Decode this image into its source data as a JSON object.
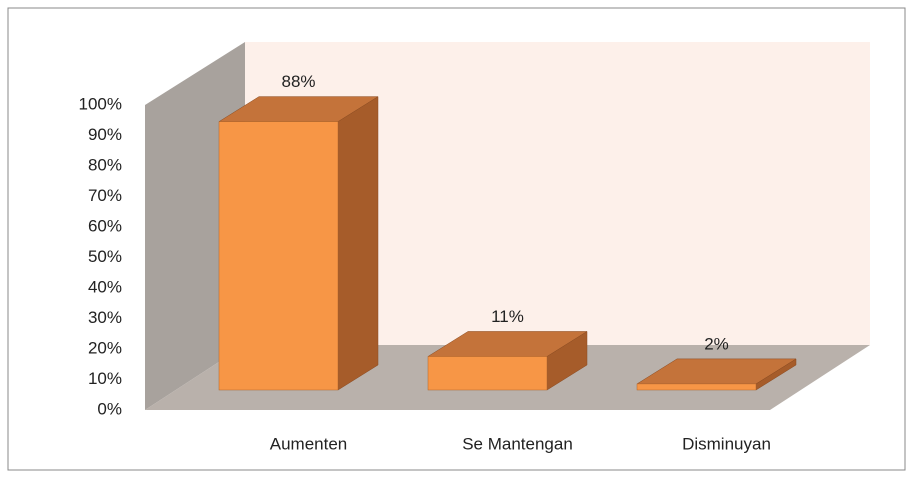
{
  "chart_data": {
    "type": "bar3d",
    "categories": [
      "Aumenten",
      "Se Mantengan",
      "Disminuyan"
    ],
    "values": [
      88,
      11,
      2
    ],
    "value_labels": [
      "88%",
      "11%",
      "2%"
    ],
    "color": "#f79646",
    "ylim": [
      0,
      100
    ],
    "yticks": [
      {
        "value": 0,
        "label": "0%"
      },
      {
        "value": 10,
        "label": "10%"
      },
      {
        "value": 20,
        "label": "20%"
      },
      {
        "value": 30,
        "label": "30%"
      },
      {
        "value": 40,
        "label": "40%"
      },
      {
        "value": 50,
        "label": "50%"
      },
      {
        "value": 60,
        "label": "60%"
      },
      {
        "value": 70,
        "label": "70%"
      },
      {
        "value": 80,
        "label": "80%"
      },
      {
        "value": 90,
        "label": "90%"
      },
      {
        "value": 100,
        "label": "100%"
      }
    ]
  }
}
